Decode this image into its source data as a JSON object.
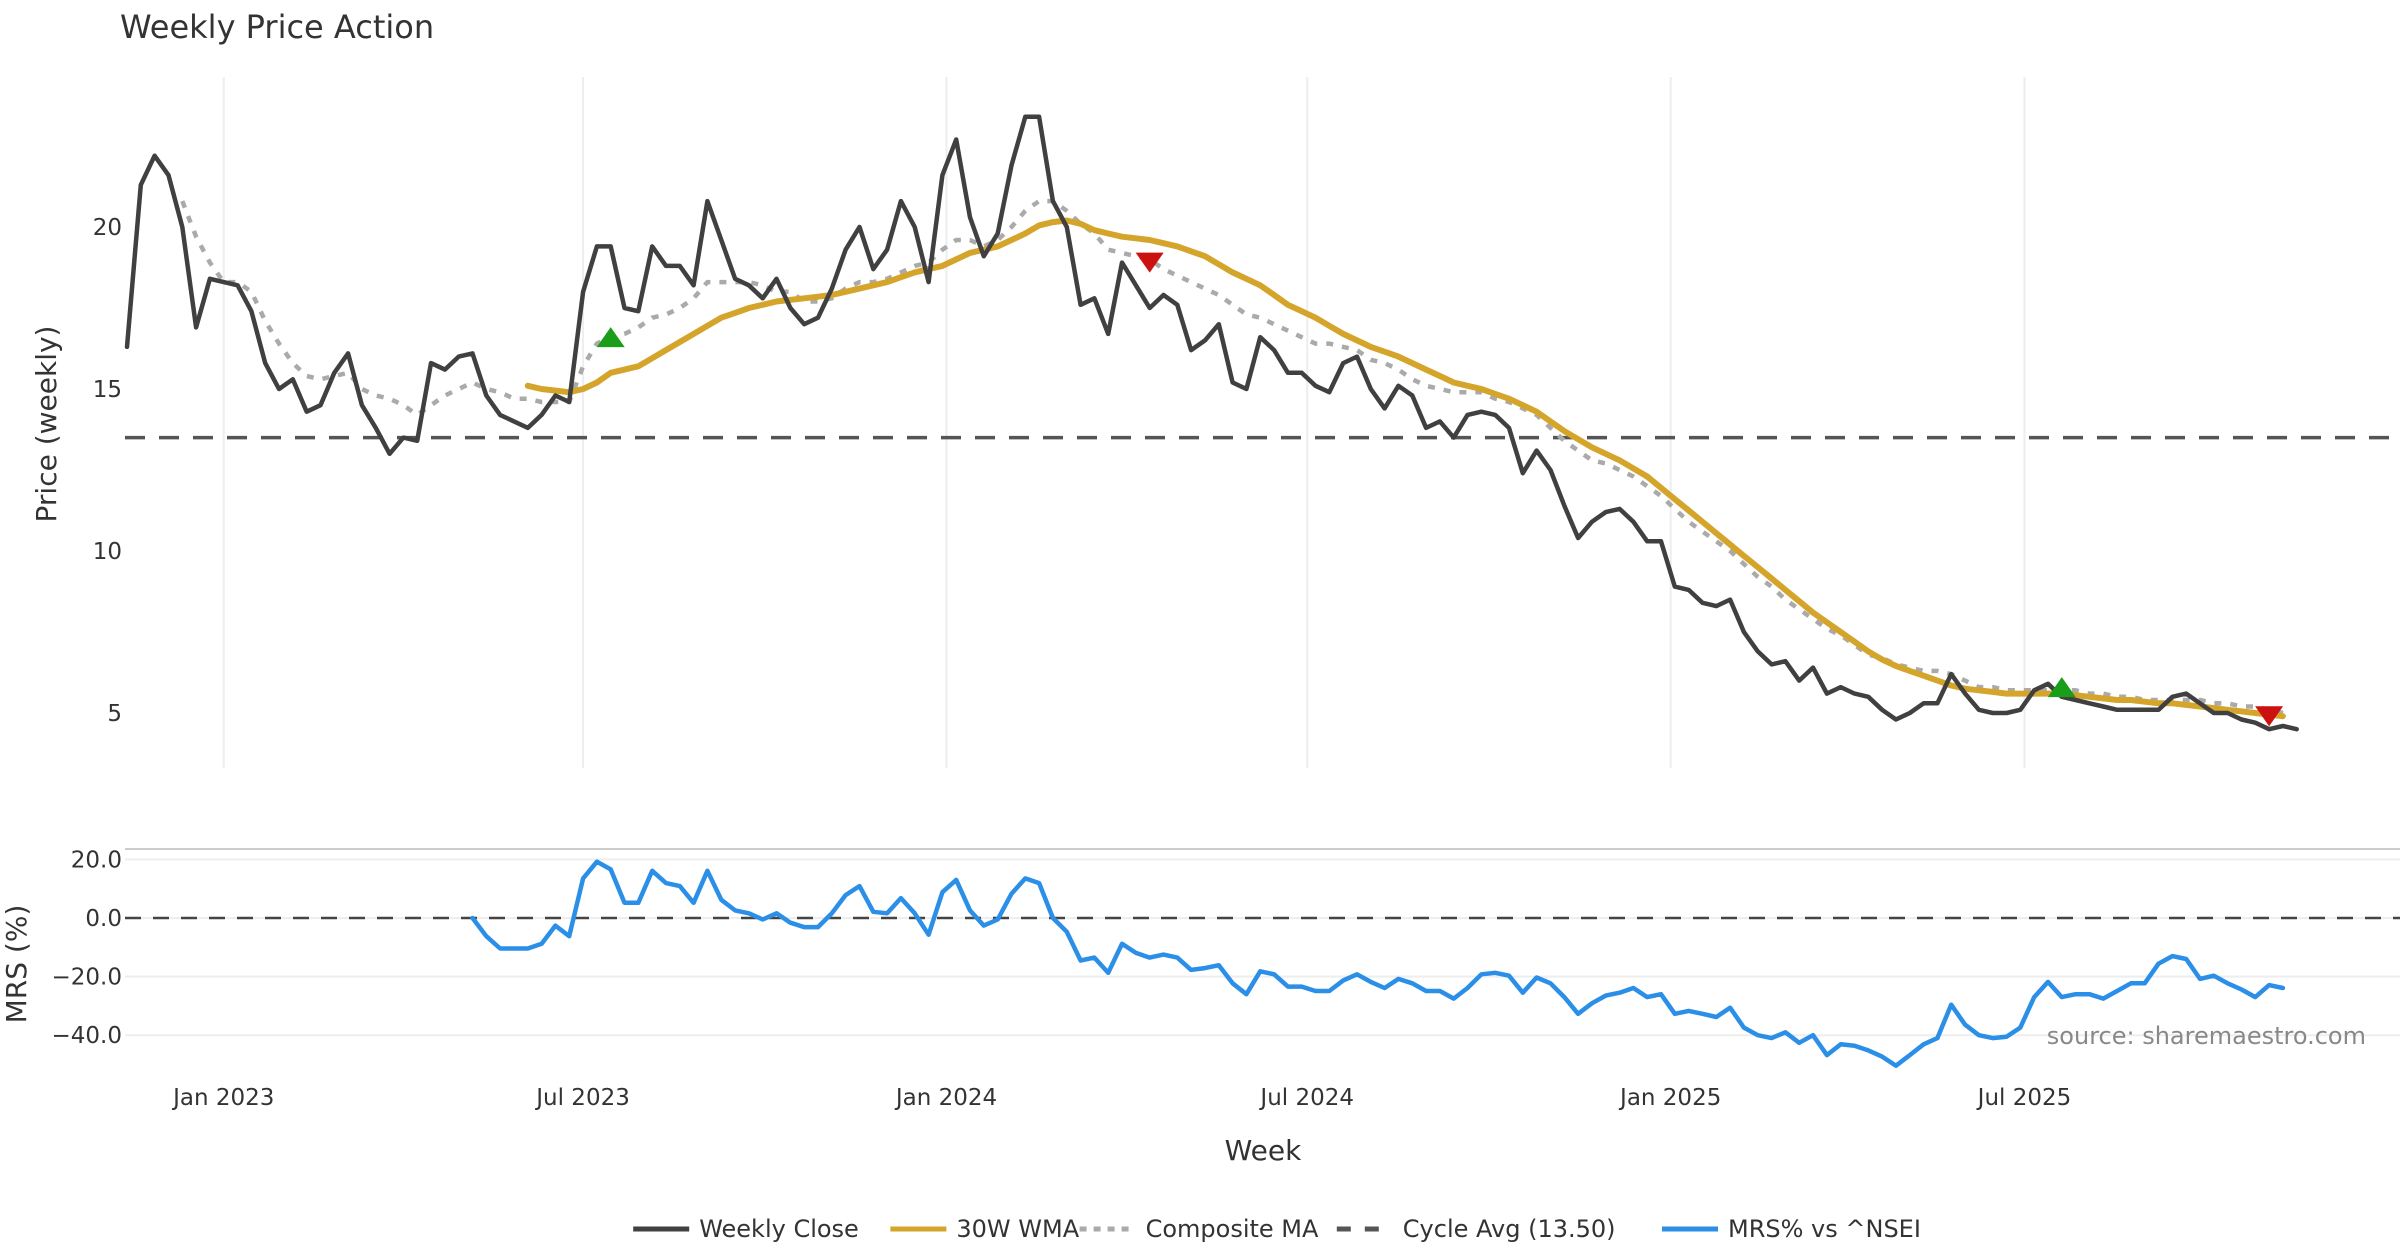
{
  "chart_data": [
    {
      "type": "line",
      "panel": "price",
      "title": "Weekly Price Action",
      "xlabel": "Week",
      "ylabel": "Price (weekly)",
      "ylim": [
        3.3,
        24.2
      ],
      "y_ticks": [
        5,
        10,
        15,
        20
      ],
      "y_tick_labels": [
        "5",
        "10",
        "15",
        "20"
      ],
      "x_ticks": [
        {
          "label": "Jan 2023",
          "week": 7
        },
        {
          "label": "Jul 2023",
          "week": 33
        },
        {
          "label": "Jan 2024",
          "week": 59.3
        },
        {
          "label": "Jul 2024",
          "week": 85.4
        },
        {
          "label": "Jan 2025",
          "week": 111.7
        },
        {
          "label": "Jul 2025",
          "week": 137.3
        }
      ],
      "x_start": "2022-11-13",
      "x_frequency": "weekly",
      "grid": "vertical",
      "series": [
        {
          "name": "Weekly Close",
          "color": "#404040",
          "style": "solid",
          "start_week": 0,
          "values": [
            16.3,
            21.3,
            22.2,
            21.6,
            20.0,
            16.9,
            18.4,
            18.3,
            18.2,
            17.4,
            15.8,
            15.0,
            15.3,
            14.3,
            14.5,
            15.5,
            16.1,
            14.5,
            13.8,
            13.0,
            13.5,
            13.4,
            15.8,
            15.6,
            16.0,
            16.1,
            14.8,
            14.2,
            14.0,
            13.8,
            14.2,
            14.8,
            14.6,
            18.0,
            19.4,
            19.4,
            17.5,
            17.4,
            19.4,
            18.8,
            18.8,
            18.2,
            20.8,
            19.6,
            18.4,
            18.2,
            17.8,
            18.4,
            17.5,
            17.0,
            17.2,
            18.1,
            19.3,
            20.0,
            18.7,
            19.3,
            20.8,
            20.0,
            18.3,
            21.6,
            22.7,
            20.3,
            19.1,
            19.8,
            21.9,
            23.4,
            23.4,
            20.8,
            20.0,
            17.6,
            17.8,
            16.7,
            18.9,
            18.2,
            17.5,
            17.9,
            17.6,
            16.2,
            16.5,
            17.0,
            15.2,
            15.0,
            16.6,
            16.2,
            15.5,
            15.5,
            15.1,
            14.9,
            15.8,
            16.0,
            15.0,
            14.4,
            15.1,
            14.8,
            13.8,
            14.0,
            13.5,
            14.2,
            14.3,
            14.2,
            13.8,
            12.4,
            13.1,
            12.5,
            11.4,
            10.4,
            10.9,
            11.2,
            11.3,
            10.9,
            10.3,
            10.3,
            8.9,
            8.8,
            8.4,
            8.3,
            8.5,
            7.5,
            6.9,
            6.5,
            6.6,
            6.0,
            6.4,
            5.6,
            5.8,
            5.6,
            5.5,
            5.1,
            4.8,
            5.0,
            5.3,
            5.3,
            6.2,
            5.6,
            5.1,
            5.0,
            5.0,
            5.1,
            5.7,
            5.9,
            5.5,
            5.4,
            5.3,
            5.2,
            5.1,
            5.1,
            5.1,
            5.1,
            5.5,
            5.6,
            5.3,
            5.0,
            5.0,
            4.8,
            4.7,
            4.5,
            4.6,
            4.5
          ]
        },
        {
          "name": "30W WMA",
          "color": "#D4A52A",
          "style": "solid",
          "start_week": 29,
          "values": [
            15.1,
            15.0,
            14.95,
            14.9,
            15.0,
            15.2,
            15.5,
            15.6,
            15.7,
            15.95,
            16.2,
            16.45,
            16.7,
            16.95,
            17.2,
            17.35,
            17.5,
            17.6,
            17.7,
            17.75,
            17.8,
            17.85,
            17.9,
            18.0,
            18.1,
            18.2,
            18.3,
            18.45,
            18.6,
            18.7,
            18.8,
            19.0,
            19.2,
            19.3,
            19.4,
            19.6,
            19.8,
            20.05,
            20.15,
            20.2,
            20.1,
            19.9,
            19.8,
            19.7,
            19.65,
            19.6,
            19.5,
            19.4,
            19.25,
            19.1,
            18.85,
            18.6,
            18.4,
            18.2,
            17.9,
            17.6,
            17.4,
            17.2,
            16.95,
            16.7,
            16.5,
            16.3,
            16.15,
            16.0,
            15.8,
            15.6,
            15.4,
            15.2,
            15.1,
            15.0,
            14.85,
            14.7,
            14.5,
            14.3,
            14.0,
            13.7,
            13.45,
            13.2,
            13.0,
            12.8,
            12.55,
            12.3,
            11.95,
            11.6,
            11.25,
            10.9,
            10.55,
            10.2,
            9.85,
            9.5,
            9.15,
            8.8,
            8.45,
            8.1,
            7.8,
            7.5,
            7.2,
            6.9,
            6.65,
            6.45,
            6.3,
            6.15,
            6.0,
            5.85,
            5.75,
            5.7,
            5.65,
            5.6,
            5.6,
            5.6,
            5.6,
            5.6,
            5.55,
            5.5,
            5.45,
            5.4,
            5.4,
            5.35,
            5.3,
            5.3,
            5.25,
            5.2,
            5.15,
            5.1,
            5.05,
            5.0,
            4.95,
            4.9
          ]
        },
        {
          "name": "Composite MA",
          "color": "#AAAAAA",
          "style": "dotted",
          "start_week": 4,
          "values": [
            20.8,
            19.7,
            18.9,
            18.3,
            18.3,
            18.0,
            17.1,
            16.4,
            15.8,
            15.4,
            15.3,
            15.4,
            15.5,
            15.0,
            14.8,
            14.7,
            14.5,
            14.2,
            14.5,
            14.8,
            15.0,
            15.2,
            15.0,
            14.9,
            14.7,
            14.7,
            14.6,
            14.6,
            14.6,
            15.7,
            16.4,
            16.6,
            16.7,
            16.9,
            17.2,
            17.3,
            17.5,
            17.8,
            18.3,
            18.3,
            18.3,
            18.3,
            18.2,
            18.0,
            18.0,
            17.7,
            17.7,
            17.8,
            18.1,
            18.3,
            18.3,
            18.4,
            18.6,
            18.8,
            18.9,
            19.3,
            19.6,
            19.6,
            19.4,
            19.6,
            20.0,
            20.5,
            20.8,
            20.8,
            20.5,
            20.1,
            19.8,
            19.3,
            19.2,
            19.1,
            19.0,
            18.7,
            18.5,
            18.3,
            18.1,
            17.9,
            17.6,
            17.3,
            17.2,
            17.0,
            16.8,
            16.6,
            16.4,
            16.4,
            16.3,
            16.2,
            15.9,
            15.8,
            15.6,
            15.3,
            15.1,
            15.0,
            14.9,
            14.9,
            14.9,
            14.7,
            14.6,
            14.4,
            14.2,
            13.8,
            13.4,
            13.1,
            12.8,
            12.7,
            12.5,
            12.3,
            12.0,
            11.7,
            11.3,
            10.9,
            10.6,
            10.3,
            10.0,
            9.6,
            9.2,
            8.9,
            8.5,
            8.2,
            7.9,
            7.6,
            7.4,
            7.1,
            6.8,
            6.7,
            6.5,
            6.4,
            6.3,
            6.3,
            6.2,
            6.0,
            5.8,
            5.8,
            5.7,
            5.7,
            5.7,
            5.7,
            5.7,
            5.7,
            5.6,
            5.6,
            5.5,
            5.5,
            5.4,
            5.4,
            5.4,
            5.4,
            5.4,
            5.3,
            5.3,
            5.2,
            5.2,
            5.1,
            5.0
          ]
        },
        {
          "name": "Cycle Avg (13.50)",
          "color": "#555555",
          "style": "dashed",
          "value": 13.5
        }
      ],
      "signals": [
        {
          "type": "buy",
          "week": 35,
          "price": 16.6,
          "color": "#1A9E1A"
        },
        {
          "type": "sell",
          "week": 74,
          "price": 18.9,
          "color": "#CC1111"
        },
        {
          "type": "buy",
          "week": 140,
          "price": 5.8,
          "color": "#1A9E1A"
        },
        {
          "type": "sell",
          "week": 155,
          "price": 4.9,
          "color": "#CC1111"
        }
      ]
    },
    {
      "type": "line",
      "panel": "mrs",
      "xlabel": "Week",
      "ylabel": "MRS (%)",
      "ylim": [
        -55,
        24
      ],
      "y_ticks": [
        20,
        0,
        -20,
        -40
      ],
      "y_tick_labels": [
        "20.0",
        "0.0",
        "−20.0",
        "−40.0"
      ],
      "grid": "horizontal",
      "zero_line": 0,
      "series": [
        {
          "name": "MRS% vs ^NSEI",
          "color": "#2B8FE8",
          "style": "solid",
          "start_week": 25,
          "values": [
            0,
            -6.2,
            -10.4,
            -10.4,
            -10.4,
            -8.8,
            -2.6,
            -6.2,
            13.5,
            19.2,
            16.6,
            5.2,
            5.2,
            16.1,
            11.9,
            10.9,
            5.2,
            16.1,
            6.2,
            2.6,
            1.6,
            -0.5,
            1.6,
            -1.6,
            -3.1,
            -3.1,
            1.6,
            7.8,
            10.9,
            2.1,
            1.6,
            6.8,
            1.6,
            -5.7,
            8.8,
            13.0,
            2.6,
            -2.6,
            -0.5,
            8.3,
            13.5,
            11.9,
            0,
            -4.7,
            -14.5,
            -13.5,
            -18.7,
            -8.8,
            -11.9,
            -13.5,
            -12.5,
            -13.5,
            -17.7,
            -17.1,
            -16.1,
            -22.3,
            -26.0,
            -18.2,
            -19.2,
            -23.4,
            -23.4,
            -24.9,
            -24.9,
            -21.3,
            -19.2,
            -21.8,
            -23.9,
            -20.8,
            -22.3,
            -24.9,
            -24.9,
            -27.5,
            -23.9,
            -19.2,
            -18.7,
            -19.7,
            -25.5,
            -20.3,
            -22.3,
            -27.0,
            -32.7,
            -29.1,
            -26.5,
            -25.5,
            -23.9,
            -27.0,
            -26.0,
            -32.7,
            -31.7,
            -32.7,
            -33.8,
            -30.6,
            -37.4,
            -40.0,
            -41.0,
            -39.0,
            -42.6,
            -40.0,
            -46.8,
            -43.1,
            -43.6,
            -45.2,
            -47.3,
            -50.4,
            -46.8,
            -43.1,
            -41.0,
            -29.6,
            -36.4,
            -40.0,
            -41.0,
            -40.5,
            -37.4,
            -27.0,
            -21.8,
            -27.0,
            -26.0,
            -26.0,
            -27.5,
            -24.9,
            -22.3,
            -22.3,
            -15.6,
            -13.0,
            -14.0,
            -20.8,
            -19.7,
            -22.3,
            -24.4,
            -27.0,
            -22.9,
            -23.9
          ]
        }
      ]
    }
  ],
  "legend": {
    "position": "bottom-center",
    "items": [
      {
        "label": "Weekly Close",
        "color": "#404040",
        "style": "solid"
      },
      {
        "label": "30W WMA",
        "color": "#D4A52A",
        "style": "solid"
      },
      {
        "label": "Composite MA",
        "color": "#AAAAAA",
        "style": "dotted"
      },
      {
        "label": "Cycle Avg (13.50)",
        "color": "#555555",
        "style": "dashed"
      },
      {
        "label": "MRS% vs ^NSEI",
        "color": "#2B8FE8",
        "style": "solid"
      }
    ]
  },
  "annotation": {
    "source": "source: sharemaestro.com"
  }
}
